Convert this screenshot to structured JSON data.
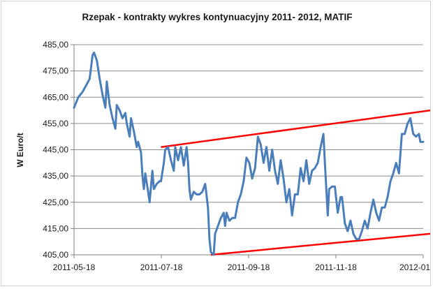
{
  "chart_data": {
    "type": "line",
    "title": "Rzepak - kontrakty wykres kontynuacyjny 2011- 2012,  MATIF",
    "xlabel": "",
    "ylabel": "W Euro/t",
    "ylim": [
      405,
      485
    ],
    "y_ticks": [
      "485,00",
      "475,00",
      "465,00",
      "455,00",
      "445,00",
      "435,00",
      "425,00",
      "415,00",
      "405,00"
    ],
    "x_ticks": [
      "2011-05-18",
      "2011-07-18",
      "2011-09-18",
      "2011-11-18",
      "2012-01-"
    ],
    "x_range": [
      "2011-05-18",
      "2012-01-18"
    ],
    "grid": "horizontal",
    "legend": "none",
    "series": [
      {
        "color": "#4a7ebb",
        "points": [
          [
            "2011-05-18",
            461
          ],
          [
            "2011-05-21",
            465
          ],
          [
            "2011-05-24",
            467
          ],
          [
            "2011-05-27",
            470
          ],
          [
            "2011-05-29",
            472
          ],
          [
            "2011-05-31",
            481
          ],
          [
            "2011-06-01",
            482
          ],
          [
            "2011-06-03",
            479
          ],
          [
            "2011-06-05",
            472
          ],
          [
            "2011-06-07",
            466
          ],
          [
            "2011-06-09",
            461
          ],
          [
            "2011-06-10",
            471
          ],
          [
            "2011-06-12",
            462
          ],
          [
            "2011-06-14",
            457
          ],
          [
            "2011-06-16",
            453
          ],
          [
            "2011-06-17",
            462
          ],
          [
            "2011-06-19",
            460
          ],
          [
            "2011-06-21",
            457
          ],
          [
            "2011-06-23",
            459
          ],
          [
            "2011-06-24",
            455
          ],
          [
            "2011-06-26",
            450
          ],
          [
            "2011-06-27",
            457
          ],
          [
            "2011-06-29",
            452
          ],
          [
            "2011-07-01",
            446
          ],
          [
            "2011-07-02",
            448
          ],
          [
            "2011-07-04",
            444
          ],
          [
            "2011-07-05",
            435
          ],
          [
            "2011-07-06",
            430
          ],
          [
            "2011-07-07",
            436
          ],
          [
            "2011-07-09",
            429
          ],
          [
            "2011-07-10",
            425
          ],
          [
            "2011-07-12",
            437
          ],
          [
            "2011-07-13",
            430
          ],
          [
            "2011-07-15",
            432
          ],
          [
            "2011-07-17",
            433
          ],
          [
            "2011-07-18",
            433
          ],
          [
            "2011-07-20",
            440
          ],
          [
            "2011-07-21",
            445
          ],
          [
            "2011-07-23",
            446
          ],
          [
            "2011-07-25",
            441
          ],
          [
            "2011-07-27",
            437
          ],
          [
            "2011-07-28",
            446
          ],
          [
            "2011-07-30",
            441
          ],
          [
            "2011-08-01",
            446
          ],
          [
            "2011-08-03",
            439
          ],
          [
            "2011-08-05",
            446
          ],
          [
            "2011-08-06",
            440
          ],
          [
            "2011-08-07",
            430
          ],
          [
            "2011-08-08",
            426
          ],
          [
            "2011-08-10",
            429
          ],
          [
            "2011-08-12",
            428
          ],
          [
            "2011-08-14",
            428
          ],
          [
            "2011-08-16",
            429
          ],
          [
            "2011-08-18",
            432
          ],
          [
            "2011-08-20",
            423
          ],
          [
            "2011-08-21",
            411
          ],
          [
            "2011-08-22",
            406
          ],
          [
            "2011-08-24",
            405
          ],
          [
            "2011-08-25",
            413
          ],
          [
            "2011-08-27",
            416
          ],
          [
            "2011-08-29",
            419
          ],
          [
            "2011-08-31",
            421
          ],
          [
            "2011-09-01",
            416
          ],
          [
            "2011-09-02",
            421
          ],
          [
            "2011-09-04",
            418
          ],
          [
            "2011-09-06",
            419
          ],
          [
            "2011-09-08",
            419
          ],
          [
            "2011-09-10",
            425
          ],
          [
            "2011-09-12",
            428
          ],
          [
            "2011-09-14",
            433
          ],
          [
            "2011-09-16",
            442
          ],
          [
            "2011-09-18",
            440
          ],
          [
            "2011-09-20",
            434
          ],
          [
            "2011-09-22",
            438
          ],
          [
            "2011-09-24",
            450
          ],
          [
            "2011-09-26",
            447
          ],
          [
            "2011-09-28",
            440
          ],
          [
            "2011-09-30",
            446
          ],
          [
            "2011-10-02",
            437
          ],
          [
            "2011-10-04",
            445
          ],
          [
            "2011-10-06",
            437
          ],
          [
            "2011-10-08",
            432
          ],
          [
            "2011-10-10",
            441
          ],
          [
            "2011-10-12",
            434
          ],
          [
            "2011-10-14",
            425
          ],
          [
            "2011-10-16",
            430
          ],
          [
            "2011-10-18",
            420
          ],
          [
            "2011-10-20",
            428
          ],
          [
            "2011-10-22",
            428
          ],
          [
            "2011-10-24",
            438
          ],
          [
            "2011-10-26",
            433
          ],
          [
            "2011-10-28",
            441
          ],
          [
            "2011-10-30",
            432
          ],
          [
            "2011-11-01",
            437
          ],
          [
            "2011-11-03",
            438
          ],
          [
            "2011-11-05",
            440
          ],
          [
            "2011-11-07",
            446
          ],
          [
            "2011-11-09",
            451
          ],
          [
            "2011-11-10",
            440
          ],
          [
            "2011-11-12",
            420
          ],
          [
            "2011-11-13",
            430
          ],
          [
            "2011-11-15",
            431
          ],
          [
            "2011-11-17",
            431
          ],
          [
            "2011-11-19",
            421
          ],
          [
            "2011-11-21",
            427
          ],
          [
            "2011-11-22",
            427
          ],
          [
            "2011-11-24",
            417
          ],
          [
            "2011-11-26",
            414
          ],
          [
            "2011-11-28",
            418
          ],
          [
            "2011-11-30",
            413
          ],
          [
            "2011-12-02",
            411
          ],
          [
            "2011-12-04",
            411
          ],
          [
            "2011-12-06",
            414
          ],
          [
            "2011-12-08",
            418
          ],
          [
            "2011-12-10",
            415
          ],
          [
            "2011-12-12",
            421
          ],
          [
            "2011-12-14",
            426
          ],
          [
            "2011-12-16",
            421
          ],
          [
            "2011-12-18",
            418
          ],
          [
            "2011-12-20",
            423
          ],
          [
            "2011-12-22",
            423
          ],
          [
            "2011-12-24",
            427
          ],
          [
            "2011-12-26",
            433
          ],
          [
            "2011-12-28",
            436
          ],
          [
            "2011-12-30",
            440
          ],
          [
            "2012-01-01",
            436
          ],
          [
            "2012-01-03",
            451
          ],
          [
            "2012-01-05",
            451
          ],
          [
            "2012-01-07",
            455
          ],
          [
            "2012-01-09",
            457
          ],
          [
            "2012-01-11",
            451
          ],
          [
            "2012-01-13",
            450
          ],
          [
            "2012-01-15",
            451
          ],
          [
            "2012-01-16",
            448
          ],
          [
            "2012-01-18",
            448
          ]
        ]
      }
    ],
    "trendlines": [
      {
        "color": "#ff0000",
        "points": [
          [
            "2011-07-18",
            446
          ],
          [
            "2012-01-23",
            460
          ]
        ]
      },
      {
        "color": "#ff0000",
        "points": [
          [
            "2011-08-22",
            405
          ],
          [
            "2012-01-23",
            413
          ]
        ]
      }
    ]
  }
}
